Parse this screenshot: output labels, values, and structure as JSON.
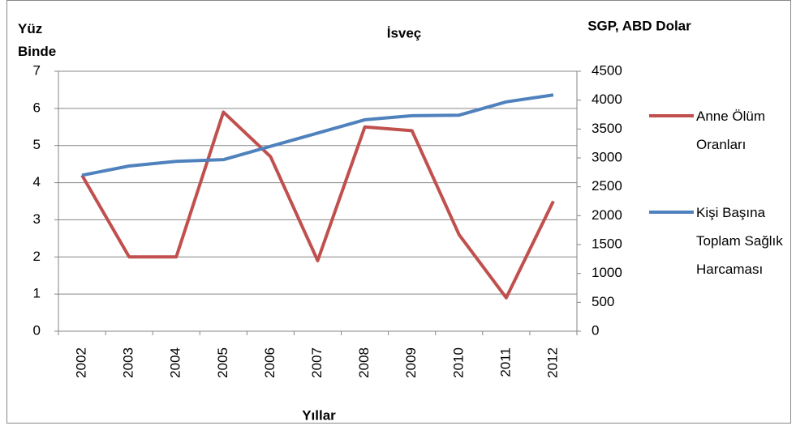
{
  "chart_data": {
    "type": "line",
    "title": "İsveç",
    "y_label": "Yüz Binde",
    "y2_label": "SGP, ABD Dolar",
    "x_label": "Yıllar",
    "categories": [
      "2002",
      "2003",
      "2004",
      "2005",
      "2006",
      "2007",
      "2008",
      "2009",
      "2010",
      "2011",
      "2012"
    ],
    "series": [
      {
        "name": "Anne Ölüm Oranları",
        "color": "#c0504d",
        "axis": "y",
        "values": [
          4.2,
          2.0,
          2.0,
          5.9,
          4.7,
          1.9,
          5.5,
          5.4,
          2.6,
          0.9,
          3.5
        ]
      },
      {
        "name": "Kişi Başına Toplam Sağlık Harcaması",
        "color": "#4f81bd",
        "axis": "y2",
        "values": [
          2700,
          2860,
          2940,
          2970,
          3200,
          3430,
          3660,
          3730,
          3740,
          3970,
          4090
        ]
      }
    ],
    "ylim": [
      0,
      7
    ],
    "yticks": [
      0,
      1,
      2,
      3,
      4,
      5,
      6,
      7
    ],
    "y2lim": [
      0,
      4500
    ],
    "y2ticks": [
      0,
      500,
      1000,
      1500,
      2000,
      2500,
      3000,
      3500,
      4000,
      4500
    ],
    "grid": true,
    "legend": "right"
  }
}
